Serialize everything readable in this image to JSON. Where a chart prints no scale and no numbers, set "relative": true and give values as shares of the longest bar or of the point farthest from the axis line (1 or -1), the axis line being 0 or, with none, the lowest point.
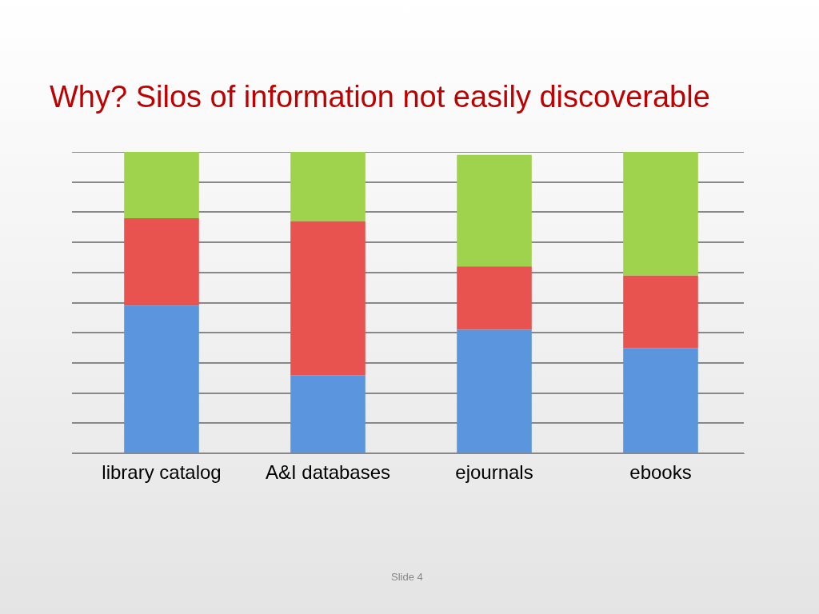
{
  "chart_data": {
    "type": "bar",
    "title": "Why? Silos of information not easily discoverable",
    "categories": [
      "library catalog",
      "A&I databases",
      "ejournals",
      "ebooks"
    ],
    "stacked": true,
    "relative": true,
    "grid": "y",
    "legend": false,
    "series": [
      {
        "color": "#5b95de",
        "values": [
          0.49,
          0.26,
          0.41,
          0.35
        ]
      },
      {
        "color": "#e8524f",
        "values": [
          0.29,
          0.51,
          0.21,
          0.24
        ]
      },
      {
        "color": "#9fd34e",
        "values": [
          0.22,
          0.23,
          0.37,
          0.41
        ]
      }
    ],
    "annotations": [
      "Slide 4"
    ]
  }
}
